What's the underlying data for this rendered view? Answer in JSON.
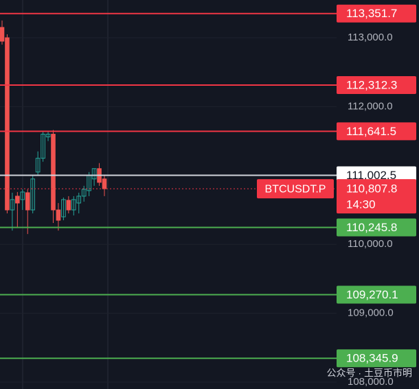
{
  "chart_data": {
    "type": "candlestick",
    "categories": [
      null,
      null,
      null,
      null,
      null,
      null,
      null,
      null,
      null,
      null,
      null,
      null,
      null,
      null,
      null,
      null,
      null,
      null,
      null,
      null,
      null
    ],
    "open": [
      113150,
      113000,
      110500,
      110700,
      110650,
      110750,
      110500,
      111050,
      111250,
      111560,
      111600,
      110500,
      110400,
      110640,
      110500,
      110600,
      110700,
      110780,
      110950,
      111100,
      110950
    ],
    "high": [
      113250,
      113050,
      110750,
      110760,
      110800,
      110800,
      111000,
      111350,
      111650,
      111640,
      111660,
      110600,
      110680,
      110700,
      110700,
      110750,
      110850,
      111050,
      111100,
      111180,
      111000
    ],
    "low": [
      112900,
      110450,
      110200,
      110250,
      110500,
      110150,
      110450,
      111000,
      111200,
      111500,
      110310,
      110200,
      110350,
      110450,
      110420,
      110450,
      110620,
      110700,
      110850,
      110850,
      110700
    ],
    "close": [
      112950,
      110500,
      110650,
      110600,
      110760,
      110500,
      110950,
      111250,
      111600,
      111600,
      110500,
      110350,
      110650,
      110500,
      110650,
      110700,
      110800,
      111000,
      111100,
      110900,
      110807.8
    ],
    "up_color": "#26a69a",
    "down_color": "#ef5350",
    "ylim": [
      107900,
      113548
    ],
    "yticks": [
      {
        "value": 113000,
        "label": "113,000.0"
      },
      {
        "value": 112000,
        "label": "112,000.0"
      },
      {
        "value": 110000,
        "label": "110,000.0"
      },
      {
        "value": 109000,
        "label": "109,000.0"
      },
      {
        "value": 108000,
        "label": "108,000.0"
      }
    ],
    "levels": {
      "values": [
        113351.7,
        112312.3,
        111641.5,
        111002.5,
        110245.8,
        109270.1,
        108345.9
      ],
      "value_labels": [
        "113,351.7",
        "112,312.3",
        "111,641.5",
        "111,002.5",
        "110,245.8",
        "109,270.1",
        "108,345.9"
      ],
      "colors": [
        "#f23645",
        "#f23645",
        "#f23645",
        "#ffffff",
        "#4caf50",
        "#4caf50",
        "#4caf50"
      ]
    },
    "last_price": {
      "symbol": "BTCUSDT.P",
      "value": 110807.8,
      "label": "110,807.8",
      "countdown": "14:30",
      "color": "#f23645"
    },
    "watermark": "公众号 · 土豆币市明"
  }
}
